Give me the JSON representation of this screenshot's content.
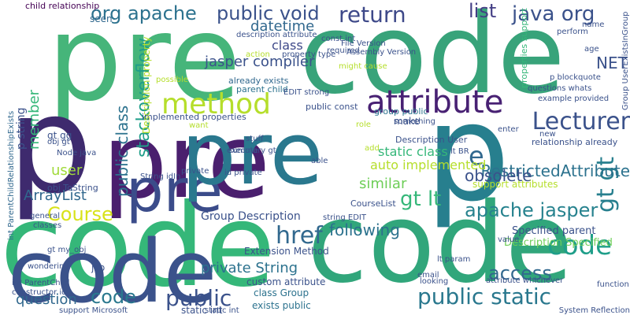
{
  "word_cloud": {
    "words": [
      {
        "text": "pre",
        "color": "#46b57a"
      },
      {
        "text": "code",
        "color": "#38a37a"
      },
      {
        "text": "p",
        "color": "#3e2a6e"
      },
      {
        "text": "pre",
        "color": "#4a1f6e"
      },
      {
        "text": "p",
        "color": "#277f8e"
      },
      {
        "text": "code",
        "color": "#35b779"
      },
      {
        "text": "pre",
        "color": "#3b4c8a"
      },
      {
        "text": "code",
        "color": "#31a67b"
      },
      {
        "text": "pre",
        "color": "#2a788e"
      },
      {
        "text": "attribute",
        "color": "#482173"
      },
      {
        "text": "method",
        "color": "#b5de2b"
      },
      {
        "text": "gt gt",
        "color": "#277f8e"
      },
      {
        "text": "code",
        "color": "#3b528b"
      },
      {
        "text": "org apache",
        "color": "#2c728e"
      },
      {
        "text": "public void",
        "color": "#3b528b"
      },
      {
        "text": "return",
        "color": "#3e4989"
      },
      {
        "text": "list",
        "color": "#433e85"
      },
      {
        "text": "java org",
        "color": "#3b528b"
      },
      {
        "text": "datetime",
        "color": "#31688e"
      },
      {
        "text": "stackoverflow",
        "color": "#1f9e89"
      },
      {
        "text": "public class",
        "color": "#2c728e"
      },
      {
        "text": "Lecturer",
        "color": "#3b528b"
      },
      {
        "text": "gt lt",
        "color": "#35b779"
      },
      {
        "text": "apache jasper",
        "color": "#26828e"
      },
      {
        "text": "code",
        "color": "#1f9e89"
      },
      {
        "text": "href",
        "color": "#31688e"
      },
      {
        "text": "public static",
        "color": "#2a788e"
      },
      {
        "text": "public",
        "color": "#3b528b"
      },
      {
        "text": "code",
        "color": "#2a788e"
      },
      {
        "text": "access",
        "color": "#31688e"
      },
      {
        "text": "Course",
        "color": "#d8e219"
      },
      {
        "text": "jasper compiler",
        "color": "#3b528b"
      },
      {
        "text": "RestrictedAttribute",
        "color": "#2c728e"
      },
      {
        "text": "following",
        "color": "#2c728e"
      },
      {
        "text": "e",
        "color": "#31688e"
      },
      {
        "text": "obsolete",
        "color": "#3b528b"
      },
      {
        "text": "private String",
        "color": "#2c728e"
      },
      {
        "text": "ArrayList",
        "color": "#31688e"
      },
      {
        "text": "user",
        "color": "#a0da39"
      },
      {
        "text": "member",
        "color": "#35b779"
      },
      {
        "text": "Group Description",
        "color": "#3b528b"
      },
      {
        "text": "question",
        "color": "#31688e"
      },
      {
        "text": "static class",
        "color": "#35b779"
      },
      {
        "text": "auto implemented",
        "color": "#b5de2b"
      },
      {
        "text": "similar",
        "color": "#6ece58"
      },
      {
        "text": "NET",
        "color": "#3b528b"
      },
      {
        "text": "class",
        "color": "#3e4989"
      },
      {
        "text": "child relationship",
        "color": "#440154"
      },
      {
        "text": "seen",
        "color": "#31688e"
      },
      {
        "text": "p string",
        "color": "#3b528b"
      },
      {
        "text": "Description Specified",
        "color": "#6ece58"
      },
      {
        "text": "Specified parent",
        "color": "#3b528b"
      },
      {
        "text": "class Group",
        "color": "#2c728e"
      },
      {
        "text": "function",
        "color": "#3b528b"
      },
      {
        "text": "description attribute",
        "color": "#3b528b"
      },
      {
        "text": "already exists",
        "color": "#31688e"
      },
      {
        "text": "parent child",
        "color": "#2c728e"
      },
      {
        "text": "public const",
        "color": "#3b528b"
      },
      {
        "text": "make",
        "color": "#3b528b"
      },
      {
        "text": "Description User",
        "color": "#3b528b"
      },
      {
        "text": "CourseList",
        "color": "#3b528b"
      },
      {
        "text": "support attributes",
        "color": "#b5de2b"
      },
      {
        "text": "relationship already",
        "color": "#3b528b"
      },
      {
        "text": "properties support",
        "color": "#35b779"
      },
      {
        "text": "int ParentChildRelationshipExists",
        "color": "#31688e"
      },
      {
        "text": "Extension Method",
        "color": "#3b528b"
      },
      {
        "text": "custom attribute",
        "color": "#3b528b"
      },
      {
        "text": "exists public",
        "color": "#2c728e"
      },
      {
        "text": "static int",
        "color": "#3b528b"
      },
      {
        "text": "String idIn",
        "color": "#3b528b"
      },
      {
        "text": "Group UserExistsInGroup",
        "color": "#3b528b"
      },
      {
        "text": "implemented properties",
        "color": "#3b528b"
      },
      {
        "text": "Description property",
        "color": "#b5de2b"
      },
      {
        "text": "group public",
        "color": "#2c728e"
      },
      {
        "text": "gt gg",
        "color": "#3b528b"
      },
      {
        "text": "jsp",
        "color": "#3b528b"
      },
      {
        "text": "looking",
        "color": "#3b528b"
      },
      {
        "text": "support Microsoft",
        "color": "#3b528b"
      },
      {
        "text": "System Reflection",
        "color": "#3b528b"
      },
      {
        "text": "Assembly Version",
        "color": "#3b528b"
      },
      {
        "text": "File Version",
        "color": "#3b528b"
      },
      {
        "text": "obj ToString",
        "color": "#3b528b"
      },
      {
        "text": "string EDIT",
        "color": "#3b528b"
      },
      {
        "text": "wondering",
        "color": "#3b528b"
      },
      {
        "text": "general",
        "color": "#3b528b"
      },
      {
        "text": "classes",
        "color": "#3b528b"
      },
      {
        "text": "role",
        "color": "#b5de2b"
      },
      {
        "text": "add",
        "color": "#b5de2b"
      },
      {
        "text": "private",
        "color": "#3b528b"
      },
      {
        "text": "stuff",
        "color": "#3b528b"
      },
      {
        "text": "execute",
        "color": "#3b528b"
      },
      {
        "text": "able",
        "color": "#3b528b"
      },
      {
        "text": "want",
        "color": "#b5de2b"
      },
      {
        "text": "new",
        "color": "#3b528b"
      },
      {
        "text": "value",
        "color": "#3b528b"
      },
      {
        "text": "enter",
        "color": "#3b528b"
      },
      {
        "text": "lt BR",
        "color": "#3b528b"
      },
      {
        "text": "possible",
        "color": "#b5de2b"
      },
      {
        "text": "required",
        "color": "#3b528b"
      },
      {
        "text": "const int",
        "color": "#3b528b"
      },
      {
        "text": "might cause",
        "color": "#b5de2b"
      },
      {
        "text": "EDIT strong",
        "color": "#3b528b"
      },
      {
        "text": "action",
        "color": "#b5de2b"
      },
      {
        "text": "property type",
        "color": "#3b528b"
      },
      {
        "text": "Node java",
        "color": "#3b528b"
      },
      {
        "text": "id private",
        "color": "#3b528b"
      },
      {
        "text": "summary gt",
        "color": "#3b528b"
      },
      {
        "text": "lt param",
        "color": "#3b528b"
      },
      {
        "text": "email",
        "color": "#3b528b"
      },
      {
        "text": "age",
        "color": "#3b528b"
      },
      {
        "text": "perform",
        "color": "#3b528b"
      },
      {
        "text": "name",
        "color": "#3b528b"
      },
      {
        "text": "something",
        "color": "#3b528b"
      },
      {
        "text": "attribute whichever",
        "color": "#3b528b"
      },
      {
        "text": "p blockquote",
        "color": "#3b528b"
      },
      {
        "text": "questions whats",
        "color": "#3b528b"
      },
      {
        "text": "example provided",
        "color": "#3b528b"
      },
      {
        "text": "obj gt",
        "color": "#3b528b"
      },
      {
        "text": "gt my_obj",
        "color": "#3b528b"
      },
      {
        "text": "int ParentChild",
        "color": "#3b528b"
      },
      {
        "text": "constructor id",
        "color": "#3b528b"
      },
      {
        "text": "static int",
        "color": "#3b528b"
      }
    ]
  }
}
